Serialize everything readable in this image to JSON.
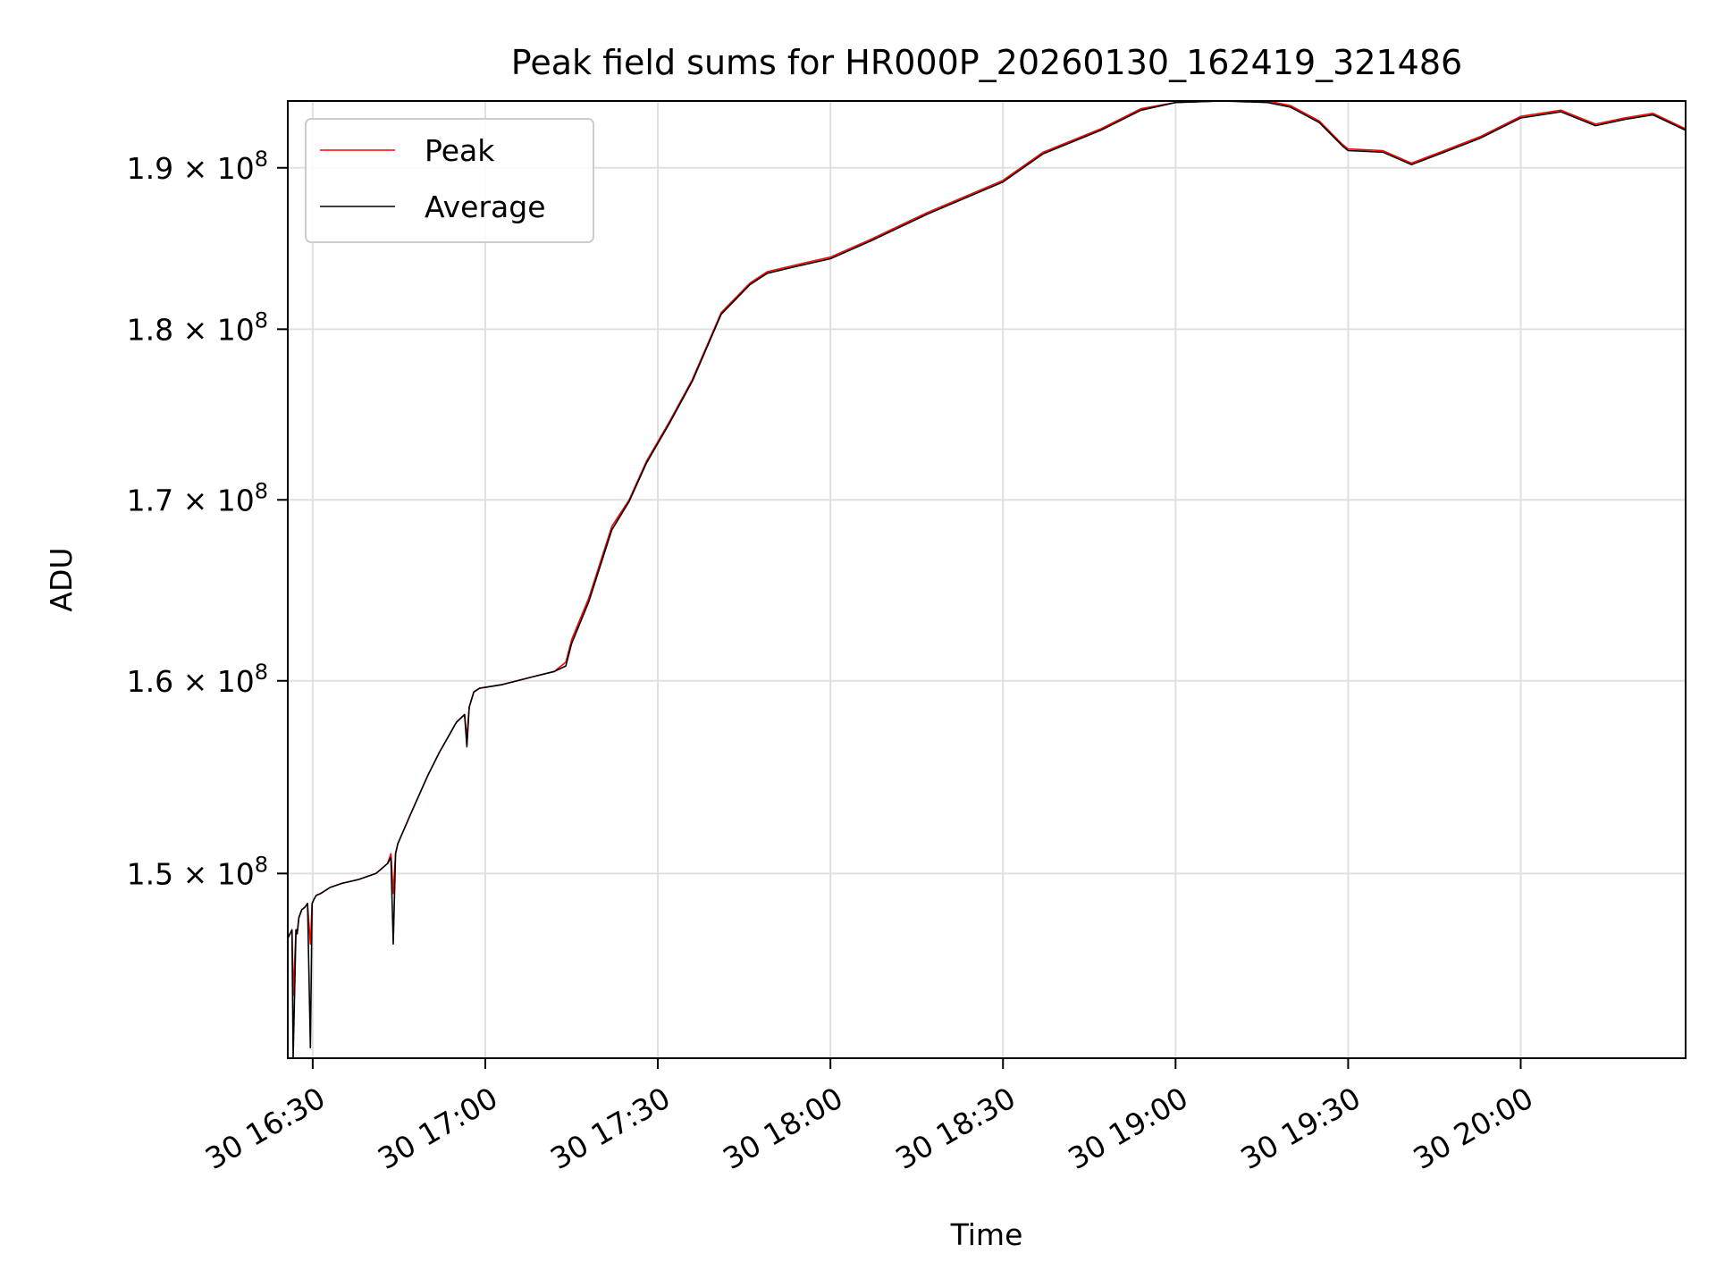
{
  "chart_data": {
    "type": "line",
    "title": "Peak field sums for HR000P_20260130_162419_321486",
    "xlabel": "Time",
    "ylabel": "ADU",
    "x_tick_labels": [
      "30 16:30",
      "30 17:00",
      "30 17:30",
      "30 18:00",
      "30 18:30",
      "30 19:00",
      "30 19:30",
      "30 20:00"
    ],
    "x_ticks": [
      "2026-01-30 16:30",
      "2026-01-30 17:00",
      "2026-01-30 17:30",
      "2026-01-30 18:00",
      "2026-01-30 18:30",
      "2026-01-30 19:00",
      "2026-01-30 19:30",
      "2026-01-30 20:00"
    ],
    "xlim": [
      "2026-01-30 16:25:40",
      "2026-01-30 20:28:40"
    ],
    "y_ticks": [
      150000000.0,
      160000000.0,
      170000000.0,
      180000000.0,
      190000000.0
    ],
    "y_tick_labels": [
      {
        "mantissa": "1.5",
        "base": "10",
        "exp": "8"
      },
      {
        "mantissa": "1.6",
        "base": "10",
        "exp": "8"
      },
      {
        "mantissa": "1.7",
        "base": "10",
        "exp": "8"
      },
      {
        "mantissa": "1.8",
        "base": "10",
        "exp": "8"
      },
      {
        "mantissa": "1.9",
        "base": "10",
        "exp": "8"
      }
    ],
    "ylim": [
      141000000.0,
      194300000.0
    ],
    "yscale": "log",
    "grid": true,
    "legend": {
      "position": "top-left"
    },
    "colors": {
      "Peak": "#ff0000",
      "Average": "#000000",
      "grid": "#e0e0e0"
    },
    "x": [
      "2026-01-30 16:25:42",
      "2026-01-30 16:26:24",
      "2026-01-30 16:26:36",
      "2026-01-30 16:27:06",
      "2026-01-30 16:27:18",
      "2026-01-30 16:27:36",
      "2026-01-30 16:28:06",
      "2026-01-30 16:28:36",
      "2026-01-30 16:29:06",
      "2026-01-30 16:29:36",
      "2026-01-30 16:29:54",
      "2026-01-30 16:30:12",
      "2026-01-30 16:30:36",
      "2026-01-30 16:31:24",
      "2026-01-30 16:33:00",
      "2026-01-30 16:35:00",
      "2026-01-30 16:38:00",
      "2026-01-30 16:41:00",
      "2026-01-30 16:43:00",
      "2026-01-30 16:43:36",
      "2026-01-30 16:44:00",
      "2026-01-30 16:44:24",
      "2026-01-30 16:44:48",
      "2026-01-30 16:47:00",
      "2026-01-30 16:50:00",
      "2026-01-30 16:52:00",
      "2026-01-30 16:55:00",
      "2026-01-30 16:56:24",
      "2026-01-30 16:56:48",
      "2026-01-30 16:57:12",
      "2026-01-30 16:58:00",
      "2026-01-30 16:59:00",
      "2026-01-30 17:03:00",
      "2026-01-30 17:08:00",
      "2026-01-30 17:12:00",
      "2026-01-30 17:14:00",
      "2026-01-30 17:15:00",
      "2026-01-30 17:18:00",
      "2026-01-30 17:22:00",
      "2026-01-30 17:25:00",
      "2026-01-30 17:28:00",
      "2026-01-30 17:32:00",
      "2026-01-30 17:36:00",
      "2026-01-30 17:41:00",
      "2026-01-30 17:46:00",
      "2026-01-30 17:49:00",
      "2026-01-30 17:55:00",
      "2026-01-30 18:00:00",
      "2026-01-30 18:07:00",
      "2026-01-30 18:17:00",
      "2026-01-30 18:30:00",
      "2026-01-30 18:37:00",
      "2026-01-30 18:47:00",
      "2026-01-30 18:54:00",
      "2026-01-30 19:00:00",
      "2026-01-30 19:08:00",
      "2026-01-30 19:16:00",
      "2026-01-30 19:20:00",
      "2026-01-30 19:25:00",
      "2026-01-30 19:29:00",
      "2026-01-30 19:30:00",
      "2026-01-30 19:36:00",
      "2026-01-30 19:41:00",
      "2026-01-30 19:46:00",
      "2026-01-30 19:53:00",
      "2026-01-30 20:00:00",
      "2026-01-30 20:07:00",
      "2026-01-30 20:13:00",
      "2026-01-30 20:18:00",
      "2026-01-30 20:23:00",
      "2026-01-30 20:28:40"
    ],
    "series": [
      {
        "name": "Peak",
        "values": [
          146800000.0,
          147200000.0,
          144000000.0,
          147200000.0,
          147000000.0,
          147800000.0,
          148200000.0,
          148300000.0,
          148500000.0,
          146500000.0,
          148500000.0,
          148700000.0,
          148900000.0,
          149000000.0,
          149300000.0,
          149500000.0,
          149700000.0,
          150000000.0,
          150500000.0,
          151000000.0,
          149000000.0,
          151000000.0,
          151500000.0,
          153000000.0,
          155000000.0,
          156200000.0,
          157800000.0,
          158200000.0,
          157000000.0,
          158600000.0,
          159400000.0,
          159600000.0,
          159800000.0,
          160200000.0,
          160500000.0,
          161000000.0,
          162200000.0,
          164500000.0,
          168500000.0,
          170000000.0,
          172200000.0,
          174500000.0,
          177000000.0,
          181000000.0,
          182800000.0,
          183500000.0,
          184000000.0,
          184400000.0,
          185500000.0,
          187200000.0,
          189200000.0,
          191000000.0,
          192500000.0,
          193800000.0,
          194200000.0,
          194300000.0,
          194300000.0,
          194000000.0,
          193000000.0,
          191500000.0,
          191200000.0,
          191100000.0,
          190300000.0,
          191000000.0,
          192000000.0,
          193300000.0,
          193700000.0,
          192800000.0,
          193200000.0,
          193500000.0,
          192500000.0
        ]
      },
      {
        "name": "Average",
        "values": [
          146800000.0,
          147200000.0,
          141000000.0,
          147200000.0,
          147000000.0,
          147800000.0,
          148200000.0,
          148300000.0,
          148500000.0,
          141500000.0,
          148500000.0,
          148700000.0,
          148900000.0,
          149000000.0,
          149300000.0,
          149500000.0,
          149700000.0,
          150000000.0,
          150500000.0,
          150800000.0,
          146500000.0,
          151000000.0,
          151500000.0,
          153000000.0,
          155000000.0,
          156200000.0,
          157800000.0,
          158200000.0,
          156500000.0,
          158600000.0,
          159400000.0,
          159600000.0,
          159800000.0,
          160200000.0,
          160500000.0,
          160800000.0,
          162000000.0,
          164300000.0,
          168300000.0,
          169900000.0,
          172100000.0,
          174400000.0,
          176900000.0,
          180900000.0,
          182700000.0,
          183400000.0,
          183900000.0,
          184300000.0,
          185400000.0,
          187100000.0,
          189100000.0,
          190900000.0,
          192400000.0,
          193700000.0,
          194200000.0,
          194300000.0,
          194200000.0,
          193900000.0,
          192900000.0,
          191400000.0,
          191100000.0,
          191000000.0,
          190200000.0,
          190900000.0,
          191900000.0,
          193200000.0,
          193600000.0,
          192700000.0,
          193100000.0,
          193400000.0,
          192400000.0
        ]
      }
    ]
  }
}
